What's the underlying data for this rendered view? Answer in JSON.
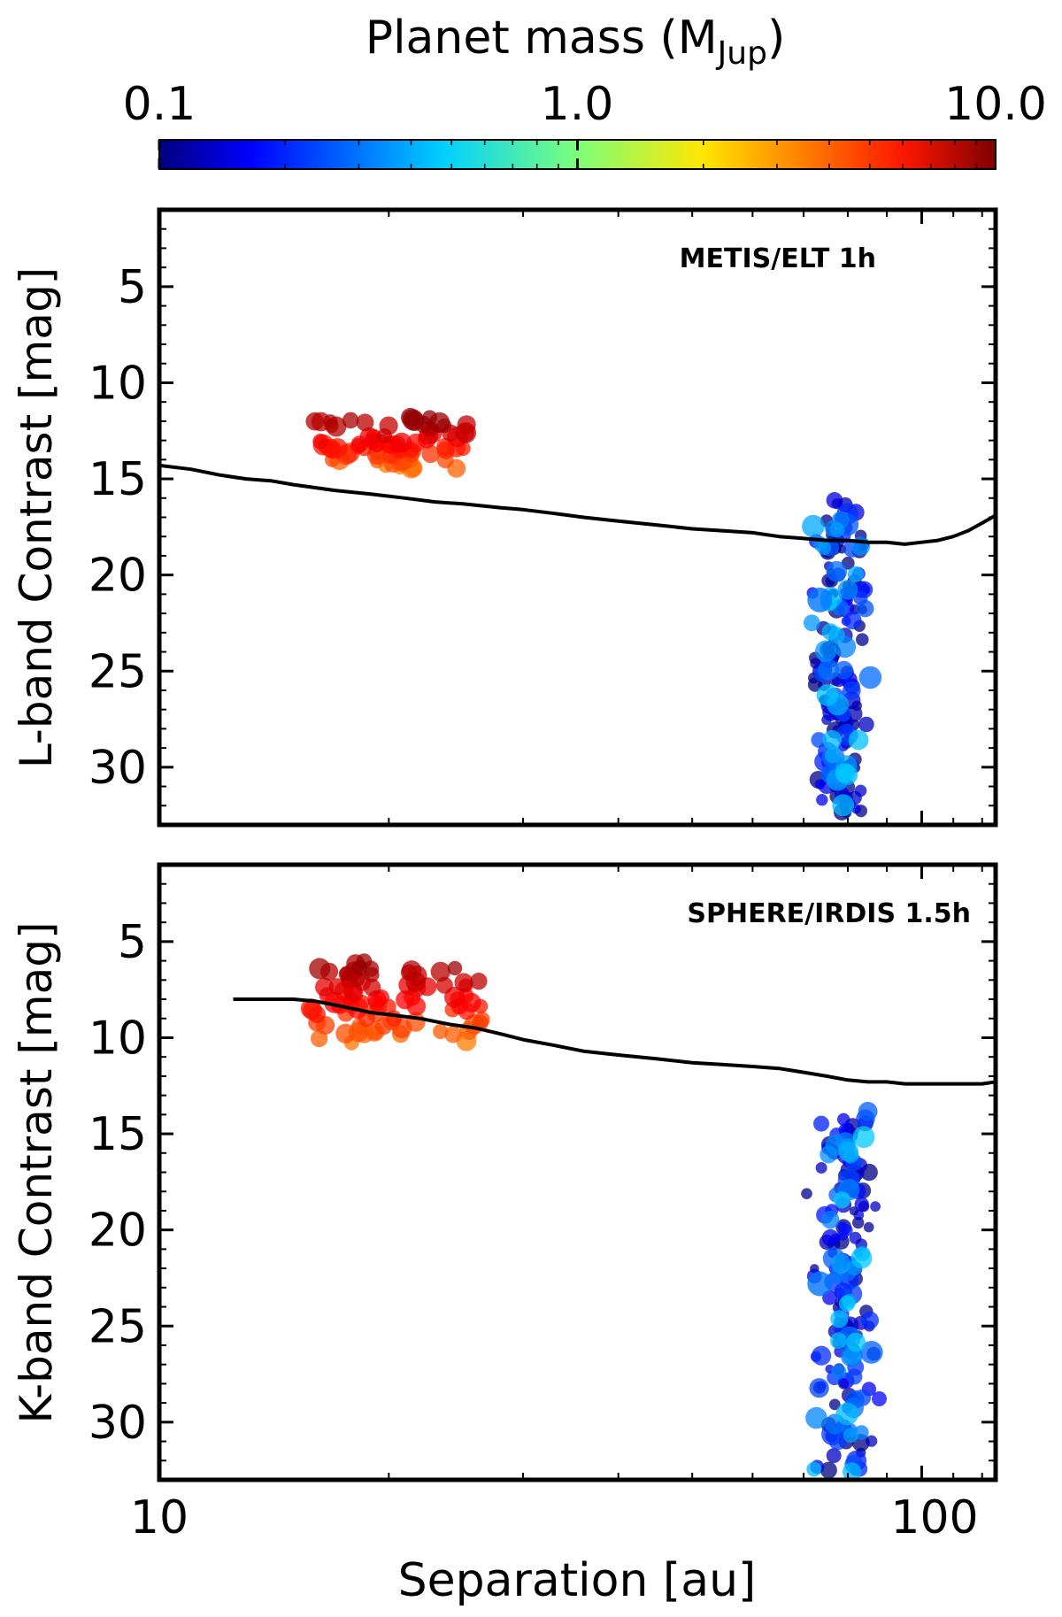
{
  "colorbar": {
    "label_main": "Planet mass (M",
    "label_sub": "Jup",
    "label_close": ")",
    "scale": "log",
    "range": [
      0.1,
      10.0
    ],
    "ticks": [
      "0.1",
      "1.0",
      "10.0"
    ],
    "colormap": "jet"
  },
  "chart_data": [
    {
      "type": "scatter",
      "panel": "top",
      "annotation": "METIS/ELT 1h",
      "ylabel": "L-band Contrast [mag]",
      "xlabel": "",
      "xscale": "log",
      "xlim": [
        10,
        125
      ],
      "ylim": [
        33,
        1
      ],
      "yticks": [
        "5",
        "10",
        "15",
        "20",
        "25",
        "30"
      ],
      "curve": {
        "name": "detection limit",
        "x": [
          10,
          11,
          12,
          13,
          14,
          15,
          17,
          19,
          21,
          23,
          25,
          28,
          30,
          33,
          36,
          40,
          45,
          50,
          55,
          60,
          65,
          70,
          75,
          80,
          85,
          90,
          95,
          100,
          105,
          110,
          115,
          120,
          125
        ],
        "y": [
          14.3,
          14.5,
          14.8,
          15.0,
          15.1,
          15.3,
          15.6,
          15.8,
          16.0,
          16.2,
          16.3,
          16.5,
          16.6,
          16.8,
          17.0,
          17.2,
          17.4,
          17.6,
          17.7,
          17.8,
          18.0,
          18.1,
          18.2,
          18.2,
          18.3,
          18.3,
          18.4,
          18.3,
          18.2,
          18.0,
          17.7,
          17.3,
          16.9
        ]
      },
      "clusters": [
        {
          "name": "massive inner planets",
          "x_range": [
            15.8,
            25.5
          ],
          "y_range": [
            11.8,
            14.5
          ],
          "mass_range": [
            3,
            10
          ],
          "count": 75
        },
        {
          "name": "low-mass outer planets",
          "x_range": [
            70,
            88
          ],
          "y_range": [
            16.0,
            32.6
          ],
          "mass_range": [
            0.1,
            0.45
          ],
          "count": 170
        }
      ]
    },
    {
      "type": "scatter",
      "panel": "bottom",
      "annotation": "SPHERE/IRDIS 1.5h",
      "ylabel": "K-band Contrast [mag]",
      "xlabel": "Separation [au]",
      "xscale": "log",
      "xlim": [
        10,
        125
      ],
      "ylim": [
        33,
        1
      ],
      "yticks": [
        "5",
        "10",
        "15",
        "20",
        "25",
        "30"
      ],
      "xticks": [
        "10",
        "100"
      ],
      "curve": {
        "name": "detection limit",
        "x": [
          12.5,
          14,
          15,
          16,
          17,
          18,
          19,
          20,
          22,
          24,
          26,
          28,
          30,
          33,
          36,
          40,
          45,
          50,
          55,
          60,
          65,
          70,
          75,
          80,
          85,
          90,
          95,
          100,
          110,
          120,
          125
        ],
        "y": [
          8.0,
          8.0,
          8.0,
          8.1,
          8.3,
          8.5,
          8.7,
          8.8,
          9.0,
          9.3,
          9.5,
          9.8,
          10.1,
          10.4,
          10.7,
          10.9,
          11.1,
          11.3,
          11.4,
          11.5,
          11.6,
          11.8,
          12.0,
          12.2,
          12.3,
          12.3,
          12.4,
          12.4,
          12.4,
          12.4,
          12.3
        ]
      },
      "clusters": [
        {
          "name": "massive inner planets",
          "x_range": [
            15.8,
            26.5
          ],
          "y_range": [
            6.0,
            10.3
          ],
          "mass_range": [
            3,
            10
          ],
          "count": 85
        },
        {
          "name": "low-mass outer planets",
          "x_range": [
            70,
            90
          ],
          "y_range": [
            13.8,
            32.6
          ],
          "mass_range": [
            0.1,
            0.45
          ],
          "count": 170
        }
      ]
    }
  ]
}
